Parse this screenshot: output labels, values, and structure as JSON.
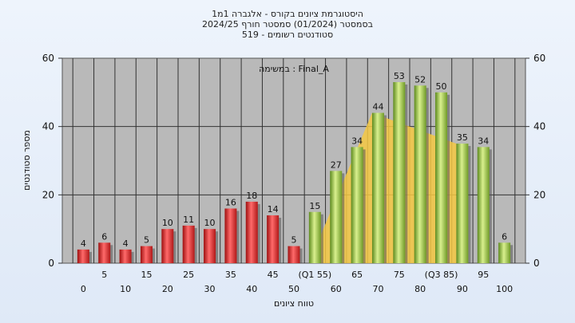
{
  "title_lines": [
    "היסטוגרמת ציונים בקורס - אלגברה 1מ1",
    "בסמסטר  (01/2024)  סמסטר חורף 2024/25",
    "519 - סטודנטים רשומים"
  ],
  "chart_data": {
    "type": "bar",
    "ylabel": "מספר סטודנטים",
    "xlabel": "טווח ציונים",
    "annotation": "במשימה : Final_A",
    "ylim": [
      0,
      60
    ],
    "y_ticks": [
      0,
      20,
      40,
      60
    ],
    "categories": [
      "0",
      "5",
      "10",
      "15",
      "20",
      "25",
      "30",
      "35",
      "40",
      "45",
      "50",
      "55",
      "60",
      "65",
      "70",
      "75",
      "80",
      "85",
      "90",
      "95",
      "100"
    ],
    "x_tick_labels": [
      "0",
      "5",
      "10",
      "15",
      "20",
      "25",
      "30",
      "35",
      "40",
      "45",
      "50",
      "(Q1 55)",
      "60",
      "65",
      "70",
      "75",
      "80",
      "(Q3 85)",
      "90",
      "95",
      "100"
    ],
    "values": [
      4,
      6,
      4,
      5,
      10,
      11,
      10,
      16,
      18,
      14,
      5,
      15,
      27,
      34,
      44,
      53,
      52,
      50,
      35,
      34,
      6
    ],
    "fail_color": "#d42a2a",
    "pass_color": "#8cbb3a",
    "pass_threshold_index": 11,
    "quartile_band": {
      "q1": "55",
      "q3": "85",
      "color": "#f5c842"
    },
    "grid": true
  }
}
